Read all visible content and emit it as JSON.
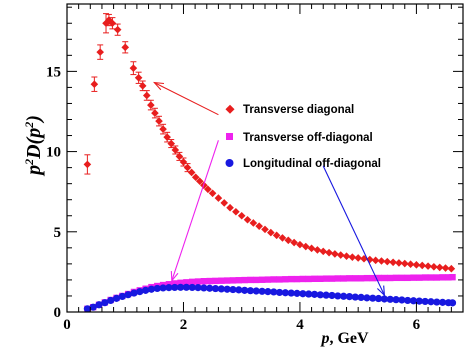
{
  "chart_data": {
    "type": "scatter",
    "xlabel_var": "p",
    "xlabel_unit": ", GeV",
    "ylabel_base": "p",
    "ylabel_sup1": "2",
    "ylabel_mid": "D(p",
    "ylabel_sup2": "2",
    "ylabel_end": ")",
    "xlim": [
      0,
      6.8
    ],
    "ylim": [
      0,
      19.2
    ],
    "xticks": [
      0,
      2,
      4,
      6
    ],
    "xtick_labels": [
      "0",
      "2",
      "4",
      "6"
    ],
    "yticks": [
      0,
      5,
      10,
      15
    ],
    "ytick_labels": [
      "0",
      "5",
      "10",
      "15"
    ],
    "legend_position": "center-right",
    "colors": {
      "transverse_diagonal": "#e81e1e",
      "transverse_off_diagonal": "#ee22ee",
      "longitudinal_off_diagonal": "#1818e0"
    },
    "series": [
      {
        "name": "Transverse diagonal",
        "marker": "diamond",
        "color": "#e81e1e",
        "x": [
          0.35,
          0.47,
          0.57,
          0.67,
          0.72,
          0.78,
          0.87,
          1.0,
          1.14,
          1.23,
          1.3,
          1.37,
          1.44,
          1.51,
          1.58,
          1.65,
          1.72,
          1.79,
          1.86,
          1.93,
          2.0,
          2.07,
          2.14,
          2.21,
          2.28,
          2.35,
          2.42,
          2.5,
          2.6,
          2.7,
          2.8,
          2.9,
          3.0,
          3.1,
          3.2,
          3.3,
          3.4,
          3.5,
          3.6,
          3.7,
          3.8,
          3.9,
          4.0,
          4.1,
          4.2,
          4.3,
          4.4,
          4.5,
          4.6,
          4.7,
          4.8,
          4.9,
          5.0,
          5.1,
          5.2,
          5.3,
          5.4,
          5.5,
          5.6,
          5.7,
          5.8,
          5.9,
          6.0,
          6.1,
          6.2,
          6.3,
          6.4,
          6.5,
          6.6
        ],
        "y": [
          9.2,
          14.2,
          16.2,
          18.0,
          18.2,
          18.0,
          17.6,
          16.5,
          15.2,
          14.6,
          14.1,
          13.5,
          12.9,
          12.4,
          11.9,
          11.4,
          10.9,
          10.5,
          10.1,
          9.7,
          9.35,
          9.0,
          8.7,
          8.4,
          8.15,
          7.9,
          7.65,
          7.4,
          7.1,
          6.8,
          6.5,
          6.25,
          6.0,
          5.75,
          5.55,
          5.35,
          5.15,
          4.95,
          4.78,
          4.62,
          4.47,
          4.33,
          4.2,
          4.08,
          3.97,
          3.87,
          3.78,
          3.7,
          3.62,
          3.55,
          3.48,
          3.42,
          3.37,
          3.32,
          3.27,
          3.22,
          3.18,
          3.14,
          3.1,
          3.06,
          3.02,
          2.98,
          2.94,
          2.9,
          2.86,
          2.82,
          2.78,
          2.74,
          2.7
        ],
        "err": [
          0.6,
          0.45,
          0.45,
          0.6,
          0.35,
          0.35,
          0.35,
          0.35,
          0.4,
          0.35,
          0.3,
          0.3,
          0.3,
          0.3,
          0.3,
          0.3,
          0.3,
          0.25,
          0.25,
          0.25,
          0.25,
          0.25,
          0.2,
          0.2,
          0.2,
          0.2,
          0.2,
          0.2,
          0.2,
          0.15,
          0.15,
          0.15,
          0.15,
          0.15,
          0.15,
          0.15,
          0.15,
          0.1,
          0.1,
          0.1,
          0.1,
          0.1,
          0.1,
          0.1,
          0.1,
          0.1,
          0.1,
          0.1,
          0.1,
          0.1,
          0.1,
          0.1,
          0.1,
          0.1,
          0.1,
          0.1,
          0.1,
          0.1,
          0.1,
          0.1,
          0.1,
          0.1,
          0.1,
          0.1,
          0.1,
          0.1,
          0.1,
          0.1,
          0.1
        ]
      },
      {
        "name": "Transverse off-diagonal",
        "marker": "square",
        "color": "#ee22ee",
        "x": [
          0.35,
          0.45,
          0.55,
          0.65,
          0.75,
          0.85,
          0.95,
          1.05,
          1.15,
          1.25,
          1.35,
          1.45,
          1.55,
          1.65,
          1.75,
          1.85,
          1.95,
          2.05,
          2.15,
          2.25,
          2.35,
          2.45,
          2.55,
          2.65,
          2.75,
          2.85,
          2.95,
          3.05,
          3.15,
          3.25,
          3.35,
          3.45,
          3.55,
          3.65,
          3.75,
          3.85,
          3.95,
          4.05,
          4.15,
          4.25,
          4.35,
          4.45,
          4.55,
          4.65,
          4.75,
          4.85,
          4.95,
          5.05,
          5.15,
          5.25,
          5.35,
          5.45,
          5.55,
          5.65,
          5.75,
          5.85,
          5.95,
          6.05,
          6.15,
          6.25,
          6.35,
          6.45,
          6.55,
          6.62
        ],
        "y": [
          0.2,
          0.3,
          0.45,
          0.6,
          0.75,
          0.88,
          1.0,
          1.12,
          1.25,
          1.35,
          1.45,
          1.55,
          1.62,
          1.68,
          1.73,
          1.78,
          1.82,
          1.85,
          1.88,
          1.9,
          1.92,
          1.93,
          1.94,
          1.95,
          1.96,
          1.97,
          1.98,
          1.99,
          2.0,
          2.0,
          2.01,
          2.02,
          2.03,
          2.03,
          2.04,
          2.05,
          2.05,
          2.06,
          2.06,
          2.07,
          2.07,
          2.08,
          2.08,
          2.09,
          2.09,
          2.1,
          2.1,
          2.1,
          2.11,
          2.11,
          2.12,
          2.12,
          2.12,
          2.13,
          2.13,
          2.13,
          2.14,
          2.14,
          2.15,
          2.15,
          2.15,
          2.16,
          2.16,
          2.17
        ]
      },
      {
        "name": "Longitudinal off-diagonal",
        "marker": "circle",
        "color": "#1818e0",
        "x": [
          0.35,
          0.45,
          0.55,
          0.65,
          0.75,
          0.85,
          0.95,
          1.05,
          1.15,
          1.25,
          1.35,
          1.45,
          1.55,
          1.65,
          1.75,
          1.85,
          1.95,
          2.05,
          2.15,
          2.25,
          2.35,
          2.45,
          2.55,
          2.65,
          2.75,
          2.85,
          2.95,
          3.05,
          3.15,
          3.25,
          3.35,
          3.45,
          3.55,
          3.65,
          3.75,
          3.85,
          3.95,
          4.05,
          4.15,
          4.25,
          4.35,
          4.45,
          4.55,
          4.65,
          4.75,
          4.85,
          4.95,
          5.05,
          5.15,
          5.25,
          5.35,
          5.45,
          5.55,
          5.65,
          5.75,
          5.85,
          5.95,
          6.05,
          6.15,
          6.25,
          6.35,
          6.45,
          6.55,
          6.62
        ],
        "y": [
          0.2,
          0.3,
          0.45,
          0.58,
          0.72,
          0.85,
          0.97,
          1.08,
          1.18,
          1.27,
          1.35,
          1.42,
          1.47,
          1.5,
          1.52,
          1.53,
          1.54,
          1.54,
          1.53,
          1.52,
          1.5,
          1.48,
          1.46,
          1.44,
          1.42,
          1.4,
          1.38,
          1.35,
          1.33,
          1.31,
          1.29,
          1.27,
          1.25,
          1.22,
          1.2,
          1.18,
          1.16,
          1.14,
          1.12,
          1.1,
          1.07,
          1.05,
          1.03,
          1.0,
          0.98,
          0.96,
          0.93,
          0.91,
          0.88,
          0.86,
          0.84,
          0.81,
          0.79,
          0.77,
          0.75,
          0.72,
          0.7,
          0.68,
          0.66,
          0.64,
          0.62,
          0.6,
          0.58,
          0.57
        ]
      }
    ],
    "annotations": [
      {
        "series": "Transverse diagonal",
        "arrow_from": [
          2.6,
          12.3
        ],
        "arrow_to": [
          1.5,
          14.3
        ]
      },
      {
        "series": "Transverse off-diagonal",
        "arrow_from": [
          2.6,
          10.7
        ],
        "arrow_to": [
          1.8,
          1.95
        ]
      },
      {
        "series": "Longitudinal off-diagonal",
        "arrow_from": [
          4.4,
          9.1
        ],
        "arrow_to": [
          5.45,
          1.05
        ]
      }
    ]
  }
}
